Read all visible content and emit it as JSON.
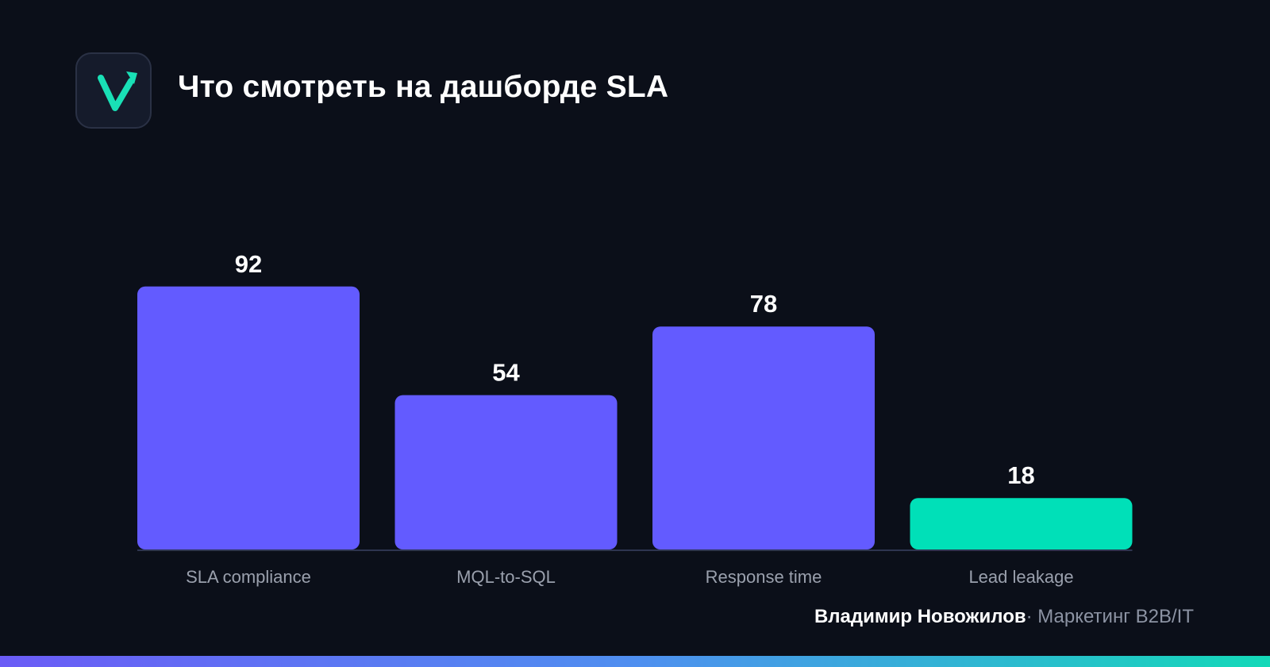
{
  "header": {
    "title": "Что смотреть на дашборде SLA",
    "logo_icon": "checkmark-arrow-icon",
    "logo_color": "#19e0b6"
  },
  "chart_data": {
    "type": "bar",
    "title": "Что смотреть на дашборде SLA",
    "categories": [
      "SLA compliance",
      "MQL-to-SQL",
      "Response time",
      "Lead leakage"
    ],
    "values": [
      92,
      54,
      78,
      18
    ],
    "colors": [
      "#635bff",
      "#635bff",
      "#635bff",
      "#00e0b8"
    ],
    "ylim": [
      0,
      100
    ],
    "grid": false,
    "legend": "none",
    "xlabel": "",
    "ylabel": ""
  },
  "footer": {
    "author": "Владимир Новожилов",
    "separator": "·",
    "org": "Маркетинг B2B/IT"
  }
}
